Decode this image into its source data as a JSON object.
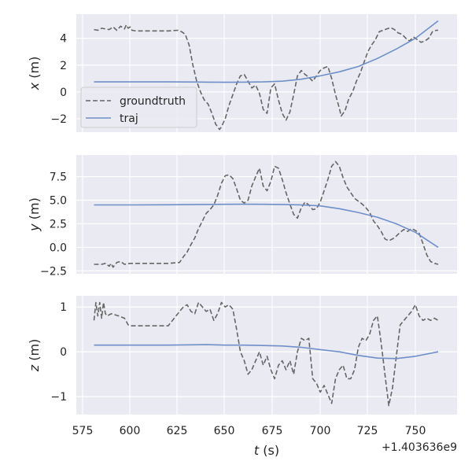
{
  "chart_data": [
    {
      "type": "line",
      "panel": "x",
      "ylabel_var": "x",
      "ylabel_unit": " (m)",
      "xlim": [
        575,
        775
      ],
      "ylim": [
        -3.0,
        5.8
      ],
      "yticks": [
        4,
        2,
        0,
        -2
      ],
      "ytick_labels": [
        "4",
        "2",
        "0",
        "−2"
      ],
      "grid": true,
      "legend": {
        "placement": "left",
        "entries": [
          "groundtruth",
          "traj"
        ]
      },
      "series": [
        {
          "name": "groundtruth",
          "style": "dashed",
          "color": "#666666",
          "x": [
            581,
            583,
            585,
            587,
            589,
            591,
            593,
            595,
            597,
            598,
            599,
            600,
            601,
            603,
            610,
            620,
            625,
            627,
            629,
            631,
            633,
            635,
            637,
            639,
            641,
            643,
            645,
            647,
            648,
            650,
            652,
            654,
            656,
            658,
            660,
            662,
            664,
            666,
            668,
            670,
            672,
            674,
            676,
            678,
            680,
            682,
            684,
            686,
            688,
            690,
            692,
            694,
            696,
            698,
            700,
            702,
            704,
            706,
            708,
            710,
            711,
            713,
            715,
            717,
            719,
            721,
            723,
            725,
            727,
            729,
            731,
            733,
            735,
            737,
            739,
            741,
            743,
            745,
            747,
            749,
            751,
            753,
            755,
            757,
            759,
            761,
            762
          ],
          "y": [
            4.65,
            4.6,
            4.75,
            4.7,
            4.65,
            4.85,
            4.6,
            4.9,
            4.7,
            5.0,
            4.75,
            4.85,
            4.6,
            4.55,
            4.55,
            4.55,
            4.6,
            4.5,
            4.3,
            3.5,
            2.0,
            0.8,
            0.0,
            -0.6,
            -0.9,
            -1.6,
            -2.4,
            -2.8,
            -2.6,
            -2.0,
            -1.0,
            -0.2,
            0.6,
            1.2,
            1.3,
            0.8,
            0.3,
            0.5,
            -0.1,
            -1.3,
            -1.6,
            0.3,
            0.6,
            -0.6,
            -1.6,
            -2.1,
            -1.5,
            -0.2,
            1.2,
            1.6,
            1.3,
            1.1,
            0.8,
            1.2,
            1.6,
            1.8,
            1.9,
            1.0,
            -0.2,
            -1.2,
            -1.8,
            -1.4,
            -0.5,
            0.0,
            0.8,
            1.4,
            2.2,
            3.0,
            3.5,
            3.9,
            4.5,
            4.6,
            4.7,
            4.8,
            4.65,
            4.4,
            4.3,
            4.0,
            3.8,
            4.1,
            3.9,
            3.7,
            3.8,
            4.0,
            4.5,
            4.6,
            4.6
          ]
        },
        {
          "name": "traj",
          "style": "solid",
          "color": "#6f8fc9",
          "x": [
            581,
            600,
            620,
            640,
            650,
            660,
            670,
            680,
            690,
            700,
            710,
            720,
            730,
            740,
            750,
            762
          ],
          "y": [
            0.75,
            0.75,
            0.75,
            0.73,
            0.72,
            0.73,
            0.75,
            0.8,
            0.95,
            1.2,
            1.5,
            1.9,
            2.5,
            3.2,
            4.0,
            5.3
          ]
        }
      ]
    },
    {
      "type": "line",
      "panel": "y",
      "ylabel_var": "y",
      "ylabel_unit": " (m)",
      "xlim": [
        575,
        775
      ],
      "ylim": [
        -2.8,
        9.8
      ],
      "yticks": [
        7.5,
        5.0,
        2.5,
        0.0,
        -2.5
      ],
      "ytick_labels": [
        "7.5",
        "5.0",
        "2.5",
        "0.0",
        "−2.5"
      ],
      "grid": true,
      "series": [
        {
          "name": "groundtruth",
          "style": "dashed",
          "color": "#666666",
          "x": [
            581,
            585,
            587,
            589,
            590,
            591,
            593,
            595,
            597,
            600,
            610,
            620,
            626,
            628,
            630,
            632,
            634,
            636,
            638,
            640,
            642,
            644,
            646,
            648,
            650,
            652,
            654,
            656,
            658,
            660,
            662,
            664,
            666,
            668,
            670,
            672,
            674,
            676,
            678,
            680,
            682,
            684,
            686,
            688,
            690,
            692,
            694,
            696,
            698,
            700,
            702,
            704,
            706,
            708,
            710,
            712,
            714,
            716,
            718,
            720,
            722,
            724,
            726,
            728,
            730,
            732,
            734,
            736,
            738,
            740,
            742,
            744,
            746,
            748,
            750,
            752,
            754,
            756,
            758,
            760,
            762
          ],
          "y": [
            -1.8,
            -1.8,
            -1.7,
            -2.0,
            -1.7,
            -2.1,
            -1.6,
            -1.5,
            -1.8,
            -1.7,
            -1.7,
            -1.7,
            -1.6,
            -1.0,
            -0.5,
            0.3,
            1.0,
            2.0,
            2.8,
            3.6,
            4.0,
            4.5,
            5.5,
            6.8,
            7.6,
            7.7,
            7.3,
            6.2,
            5.0,
            4.7,
            5.0,
            6.5,
            7.5,
            8.4,
            6.5,
            6.0,
            7.0,
            8.6,
            8.4,
            7.2,
            5.8,
            4.6,
            3.5,
            3.1,
            4.2,
            4.8,
            4.5,
            4.0,
            4.1,
            4.8,
            6.0,
            7.2,
            8.6,
            9.1,
            8.6,
            7.4,
            6.4,
            5.8,
            5.2,
            4.9,
            4.6,
            4.2,
            3.7,
            2.8,
            2.3,
            1.7,
            0.9,
            0.7,
            0.9,
            1.2,
            1.6,
            1.9,
            1.7,
            2.0,
            1.8,
            1.5,
            0.4,
            -0.8,
            -1.5,
            -1.7,
            -1.8
          ]
        },
        {
          "name": "traj",
          "style": "solid",
          "color": "#6f8fc9",
          "x": [
            581,
            600,
            620,
            640,
            650,
            660,
            670,
            680,
            690,
            700,
            710,
            720,
            730,
            740,
            750,
            762
          ],
          "y": [
            4.5,
            4.5,
            4.52,
            4.55,
            4.57,
            4.58,
            4.57,
            4.55,
            4.5,
            4.4,
            4.1,
            3.7,
            3.2,
            2.5,
            1.6,
            0.0
          ]
        }
      ]
    },
    {
      "type": "line",
      "panel": "z",
      "ylabel_var": "z",
      "ylabel_unit": " (m)",
      "xlabel_var": "t",
      "xlabel_unit": " (s)",
      "offset_label": "+1.403636e9",
      "xlim": [
        575,
        775
      ],
      "xticks": [
        575,
        600,
        625,
        650,
        675,
        700,
        725,
        750
      ],
      "ylim": [
        -1.4,
        1.25
      ],
      "yticks": [
        1,
        0,
        -1
      ],
      "ytick_labels": [
        "1",
        "0",
        "−1"
      ],
      "grid": true,
      "series": [
        {
          "name": "groundtruth",
          "style": "dashed",
          "color": "#666666",
          "x": [
            581,
            582,
            583,
            584,
            585,
            586,
            587,
            588,
            590,
            594,
            597,
            599,
            600,
            610,
            620,
            626,
            628,
            630,
            632,
            634,
            636,
            638,
            640,
            642,
            644,
            646,
            648,
            650,
            652,
            654,
            656,
            658,
            660,
            662,
            664,
            666,
            668,
            670,
            672,
            674,
            676,
            678,
            680,
            682,
            684,
            686,
            688,
            690,
            692,
            694,
            696,
            698,
            700,
            702,
            704,
            706,
            708,
            710,
            712,
            714,
            716,
            718,
            720,
            722,
            724,
            726,
            728,
            730,
            732,
            734,
            736,
            738,
            740,
            742,
            744,
            746,
            748,
            750,
            752,
            754,
            756,
            758,
            760,
            762
          ],
          "y": [
            0.7,
            1.1,
            0.8,
            1.1,
            0.75,
            1.1,
            0.85,
            0.8,
            0.85,
            0.8,
            0.75,
            0.6,
            0.58,
            0.58,
            0.58,
            0.9,
            1.0,
            1.05,
            0.9,
            0.85,
            1.1,
            1.0,
            0.9,
            0.95,
            0.7,
            0.85,
            1.1,
            1.0,
            1.05,
            0.95,
            0.5,
            0.0,
            -0.2,
            -0.5,
            -0.4,
            -0.2,
            0.0,
            -0.3,
            -0.1,
            -0.4,
            -0.6,
            -0.3,
            -0.2,
            -0.4,
            -0.2,
            -0.5,
            0.0,
            0.3,
            0.25,
            0.3,
            -0.6,
            -0.7,
            -0.9,
            -0.75,
            -0.95,
            -1.15,
            -0.6,
            -0.4,
            -0.3,
            -0.6,
            -0.6,
            -0.4,
            0.1,
            0.3,
            0.25,
            0.4,
            0.7,
            0.8,
            0.2,
            -0.5,
            -1.2,
            -0.8,
            -0.1,
            0.6,
            0.7,
            0.8,
            0.9,
            1.05,
            0.8,
            0.7,
            0.75,
            0.7,
            0.75,
            0.7
          ]
        },
        {
          "name": "traj",
          "style": "solid",
          "color": "#6f8fc9",
          "x": [
            581,
            600,
            620,
            640,
            650,
            660,
            670,
            680,
            690,
            700,
            710,
            720,
            730,
            740,
            750,
            762
          ],
          "y": [
            0.15,
            0.15,
            0.15,
            0.16,
            0.15,
            0.15,
            0.14,
            0.13,
            0.1,
            0.05,
            0.0,
            -0.08,
            -0.14,
            -0.15,
            -0.1,
            0.0
          ]
        }
      ]
    }
  ]
}
